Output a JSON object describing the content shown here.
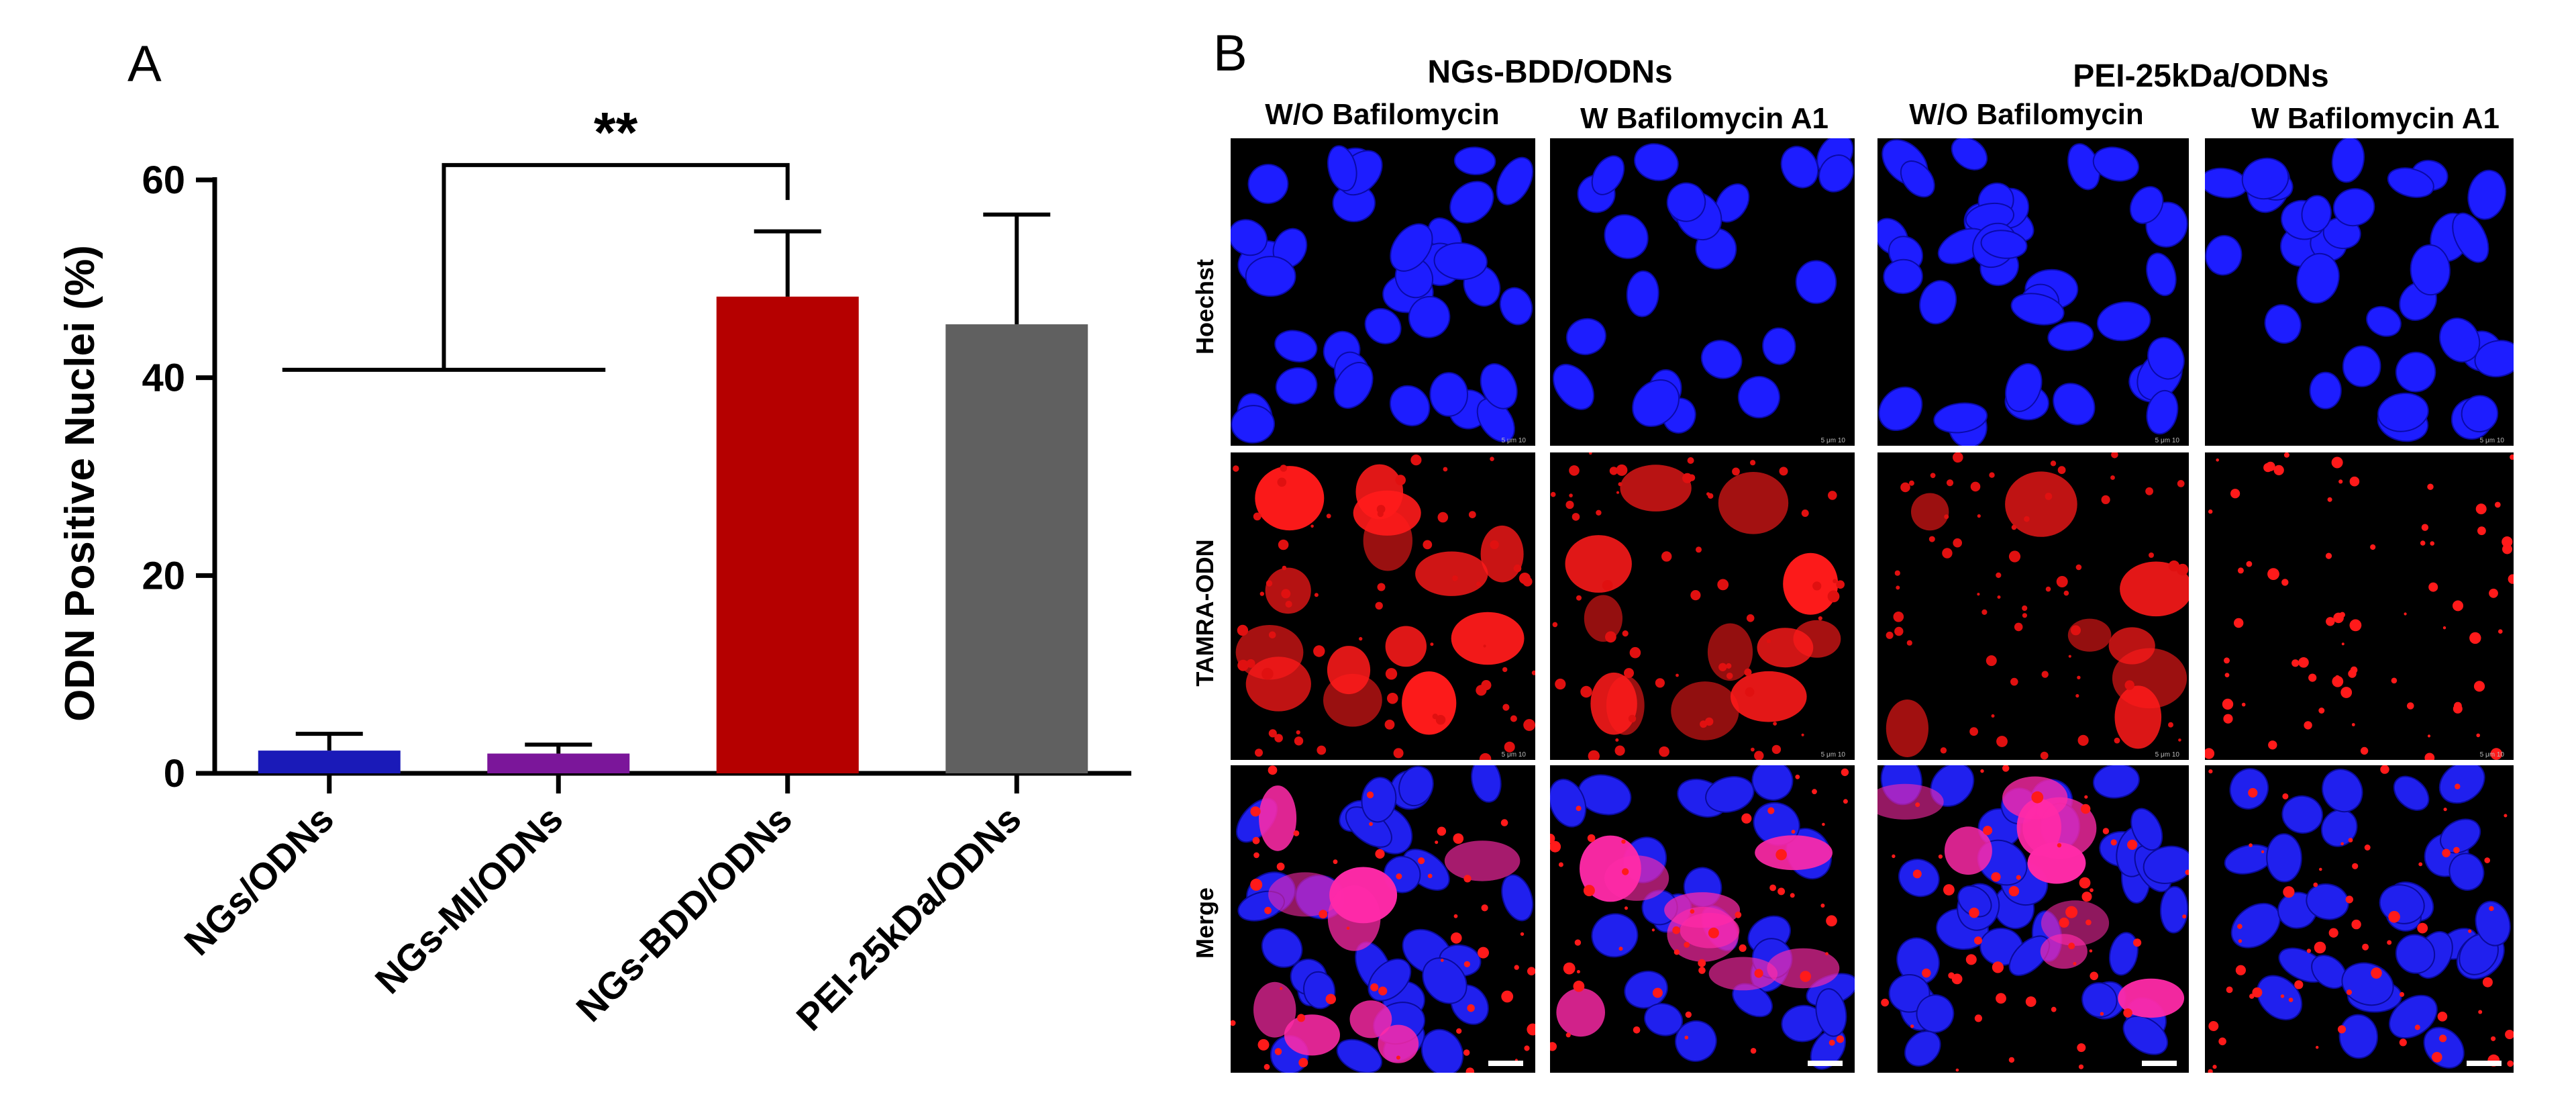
{
  "panel_a": {
    "letter": "A"
  },
  "panel_b": {
    "letter": "B",
    "groups": [
      "NGs-BDD/ODNs",
      "PEI-25kDa/ODNs"
    ],
    "columns": [
      "W/O Bafilomycin",
      "W Bafilomycin A1",
      "W/O Bafilomycin",
      "W Bafilomycin A1"
    ],
    "rows": [
      "Hoechst",
      "TAMRA-ODN",
      "Merge"
    ],
    "scale_text": "5 μm 10"
  },
  "chart_data": {
    "type": "bar",
    "title": "",
    "xlabel": "",
    "ylabel": "ODN Positive Nuclei (%)",
    "ylim": [
      0,
      60
    ],
    "yticks": [
      "0",
      "20",
      "40",
      "60"
    ],
    "categories": [
      "NGs/ODNs",
      "NGs-MI/ODNs",
      "NGs-BDD/ODNs",
      "PEI-25kDa/ODNs"
    ],
    "values": [
      2.3,
      2.0,
      48.2,
      45.4
    ],
    "errors": [
      1.7,
      0.9,
      6.6,
      11.1
    ],
    "colors": [
      "#1a1ab8",
      "#7b169a",
      "#b50000",
      "#606060"
    ],
    "significance": {
      "label": "**",
      "compare": [
        "NGs/ODNs + NGs-MI/ODNs",
        "NGs-BDD/ODNs"
      ]
    }
  },
  "microscopy_images": [
    {
      "col": 0,
      "row": 0,
      "type": "hoechst",
      "density": 34
    },
    {
      "col": 1,
      "row": 0,
      "type": "hoechst",
      "density": 22
    },
    {
      "col": 2,
      "row": 0,
      "type": "hoechst",
      "density": 36
    },
    {
      "col": 3,
      "row": 0,
      "type": "hoechst",
      "density": 32
    },
    {
      "col": 0,
      "row": 1,
      "type": "tamra",
      "density": 14
    },
    {
      "col": 1,
      "row": 1,
      "type": "tamra",
      "density": 12
    },
    {
      "col": 2,
      "row": 1,
      "type": "tamra",
      "density": 8
    },
    {
      "col": 3,
      "row": 1,
      "type": "tamra-sparse",
      "density": 0
    },
    {
      "col": 0,
      "row": 2,
      "type": "merge",
      "density": 30
    },
    {
      "col": 1,
      "row": 2,
      "type": "merge",
      "density": 24
    },
    {
      "col": 2,
      "row": 2,
      "type": "merge",
      "density": 34
    },
    {
      "col": 3,
      "row": 2,
      "type": "merge-blue",
      "density": 32
    }
  ]
}
